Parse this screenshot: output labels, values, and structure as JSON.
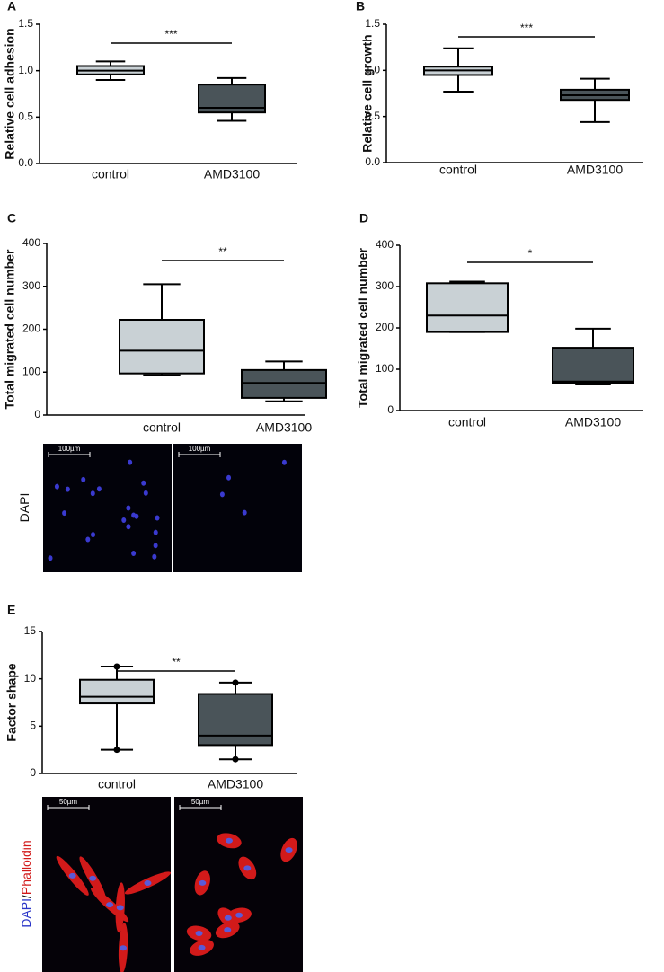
{
  "chart_data": [
    {
      "type": "box",
      "panel": "A",
      "ylabel": "Relative cell adhesion",
      "categories": [
        "control",
        "AMD3100"
      ],
      "boxes": [
        {
          "min": 0.9,
          "q1": 0.96,
          "median": 1.0,
          "q3": 1.05,
          "max": 1.1,
          "color": "#c9d1d5"
        },
        {
          "min": 0.46,
          "q1": 0.55,
          "median": 0.6,
          "q3": 0.85,
          "max": 0.92,
          "color": "#4a5459"
        }
      ],
      "ylim": [
        0,
        1.5
      ],
      "yticks": [
        {
          "value": 0,
          "label": "0.0"
        },
        {
          "value": 0.5,
          "label": "0.5"
        },
        {
          "value": 1,
          "label": "1.0"
        },
        {
          "value": 1.5,
          "label": "1.5"
        }
      ],
      "significance": "***",
      "whisker_dots": false
    },
    {
      "type": "box",
      "panel": "B",
      "ylabel": "Relative cell growth",
      "categories": [
        "control",
        "AMD3100"
      ],
      "boxes": [
        {
          "min": 0.77,
          "q1": 0.95,
          "median": 1.0,
          "q3": 1.04,
          "max": 1.24,
          "color": "#c9d1d5"
        },
        {
          "min": 0.44,
          "q1": 0.68,
          "median": 0.73,
          "q3": 0.79,
          "max": 0.91,
          "color": "#4a5459"
        }
      ],
      "ylim": [
        0,
        1.5
      ],
      "yticks": [
        {
          "value": 0,
          "label": "0.0"
        },
        {
          "value": 0.5,
          "label": "0.5"
        },
        {
          "value": 1,
          "label": "1.0"
        },
        {
          "value": 1.5,
          "label": "1.5"
        }
      ],
      "significance": "***",
      "whisker_dots": false
    },
    {
      "type": "box",
      "panel": "C",
      "ylabel": "Total migrated cell number",
      "categories": [
        "control",
        "AMD3100"
      ],
      "boxes": [
        {
          "min": 93,
          "q1": 97,
          "median": 150,
          "q3": 222,
          "max": 305,
          "color": "#c9d1d5"
        },
        {
          "min": 32,
          "q1": 40,
          "median": 75,
          "q3": 105,
          "max": 125,
          "color": "#4a5459"
        }
      ],
      "ylim": [
        0,
        400
      ],
      "yticks": [
        0,
        100,
        200,
        300,
        400
      ],
      "significance": "**",
      "whisker_dots": false
    },
    {
      "type": "box",
      "panel": "D",
      "ylabel": "Total migrated cell number",
      "categories": [
        "control",
        "AMD3100"
      ],
      "boxes": [
        {
          "min": 190,
          "q1": 190,
          "median": 230,
          "q3": 308,
          "max": 312,
          "color": "#c9d1d5"
        },
        {
          "min": 63,
          "q1": 67,
          "median": 70,
          "q3": 152,
          "max": 198,
          "color": "#4a5459"
        }
      ],
      "ylim": [
        0,
        400
      ],
      "yticks": [
        0,
        100,
        200,
        300,
        400
      ],
      "significance": "*",
      "whisker_dots": false
    },
    {
      "type": "box",
      "panel": "E",
      "ylabel": "Factor shape",
      "categories": [
        "control",
        "AMD3100"
      ],
      "boxes": [
        {
          "min": 2.5,
          "q1": 7.4,
          "median": 8.1,
          "q3": 9.9,
          "max": 11.3,
          "color": "#c9d1d5"
        },
        {
          "min": 1.5,
          "q1": 3.0,
          "median": 4.0,
          "q3": 8.4,
          "max": 9.6,
          "color": "#4a5459"
        }
      ],
      "ylim": [
        0,
        15
      ],
      "yticks": [
        0,
        5,
        10,
        15
      ],
      "significance": "**",
      "whisker_dots": true
    }
  ],
  "micrographs": [
    {
      "stain": [
        "DAPI"
      ],
      "scale_bars": [
        "100µm",
        "100µm"
      ]
    },
    {
      "stain": [
        "DAPI",
        "/",
        "Phalloidin"
      ],
      "scale_bars": [
        "50µm",
        "50µm"
      ]
    }
  ]
}
